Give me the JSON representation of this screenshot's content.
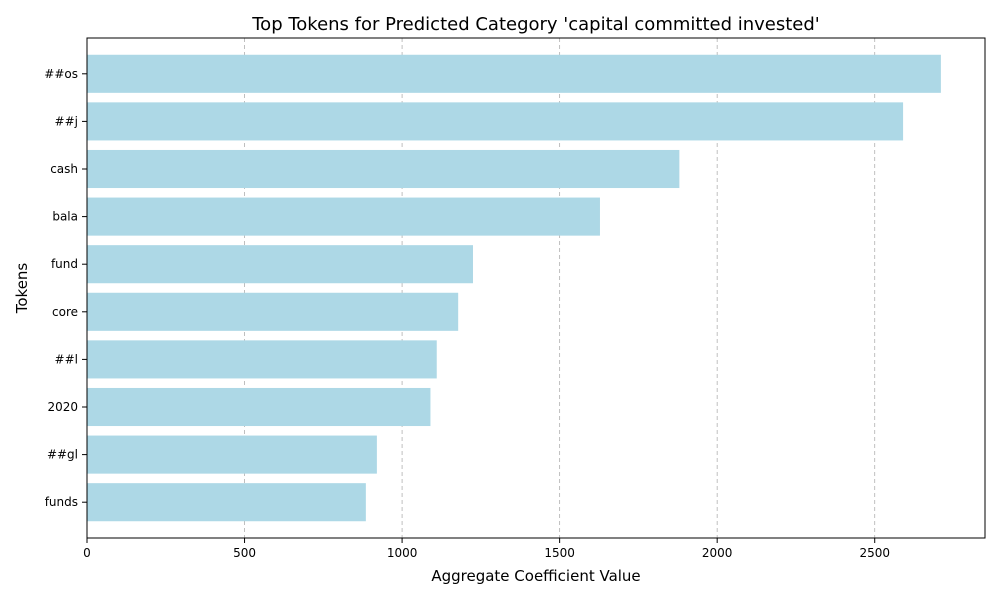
{
  "chart_data": {
    "type": "bar",
    "orientation": "horizontal",
    "title": "Top Tokens for Predicted Category 'capital committed invested'",
    "xlabel": "Aggregate Coefficient Value",
    "ylabel": "Tokens",
    "categories": [
      "##os",
      "##j",
      "cash",
      "bala",
      "fund",
      "core",
      "##l",
      "2020",
      "##gl",
      "funds"
    ],
    "values": [
      2710,
      2590,
      1880,
      1628,
      1225,
      1178,
      1110,
      1090,
      920,
      885
    ],
    "xlim": [
      0,
      2850
    ],
    "xticks": [
      0,
      500,
      1000,
      1500,
      2000,
      2500
    ],
    "grid": "x-dashed",
    "bar_color": "#add8e6",
    "legend": "none"
  }
}
